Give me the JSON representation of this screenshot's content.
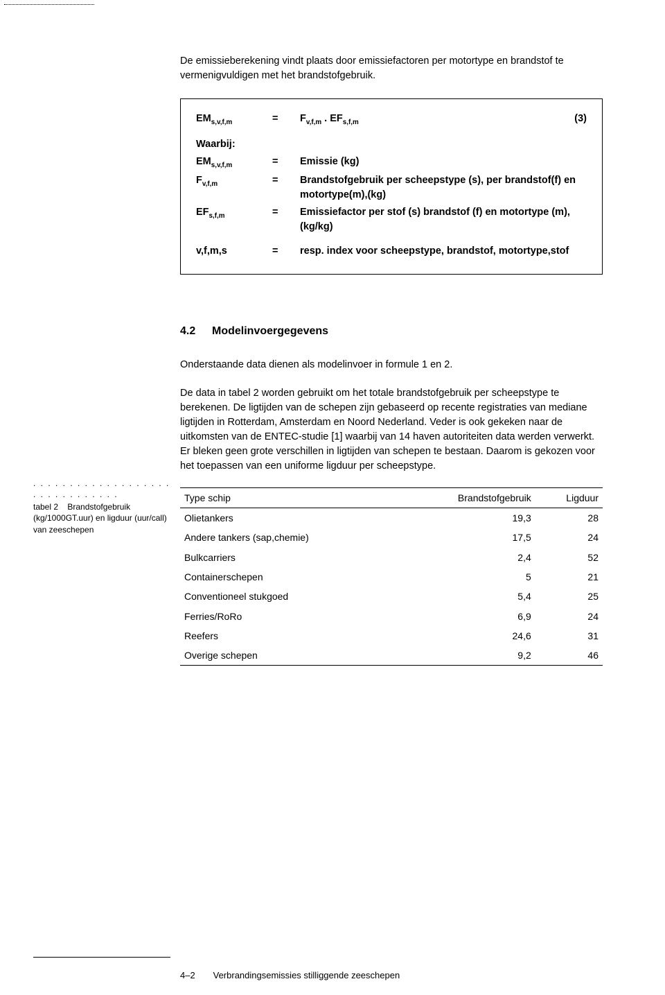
{
  "intro": "De emissieberekening vindt plaats door emissiefactoren per motortype en brandstof te vermenigvuldigen met het brandstofgebruik.",
  "formula": {
    "eq_line": {
      "lhs": "EM",
      "lhs_sub": "s,v,f,m",
      "eq": "=",
      "rhs_a": "F",
      "rhs_a_sub": "v,f,m",
      "dot": " . ",
      "rhs_b": "EF",
      "rhs_b_sub": "s,f,m",
      "tag": "(3)"
    },
    "where_label": "Waarbij:",
    "rows": [
      {
        "sym": "EM",
        "sub": "s,v,f,m",
        "eq": "=",
        "desc": "Emissie (kg)"
      },
      {
        "sym": "F",
        "sub": "v,f,m",
        "eq": "=",
        "desc": "Brandstofgebruik per scheepstype (s), per brandstof(f) en motortype(m),(kg)"
      },
      {
        "sym": "EF",
        "sub": "s,f,m",
        "eq": "=",
        "desc": "Emissiefactor per stof (s) brandstof (f) en motortype (m), (kg/kg)"
      },
      {
        "sym": "v,f,m,s",
        "sub": "",
        "eq": "=",
        "desc": "resp. index voor scheepstype, brandstof, motortype,stof"
      }
    ]
  },
  "section": {
    "number": "4.2",
    "title": "Modelinvoergegevens",
    "p1": "Onderstaande data dienen als modelinvoer in formule 1 en 2.",
    "p2": "De data in tabel 2 worden gebruikt om het totale brandstofgebruik per scheepstype te berekenen. De ligtijden van de schepen zijn gebaseerd op recente registraties van mediane ligtijden in Rotterdam, Amsterdam en Noord Nederland. Veder is ook gekeken naar de uitkomsten van de ENTEC-studie [1] waarbij van 14 haven autoriteiten data werden verwerkt. Er bleken geen grote verschillen in ligtijden van schepen te bestaan. Daarom is gekozen voor het toepassen van een uniforme ligduur per scheepstype."
  },
  "table_caption": {
    "dots": ". . . . . . . . . . . . . . . . . . . . . . . . . . . . . . .",
    "label": "tabel 2",
    "text": "Brandstofgebruik (kg/1000GT.uur) en ligduur (uur/call) van zeeschepen"
  },
  "table": {
    "columns": [
      "Type schip",
      "Brandstofgebruik",
      "Ligduur"
    ],
    "rows": [
      [
        "Olietankers",
        "19,3",
        "28"
      ],
      [
        "Andere tankers (sap,chemie)",
        "17,5",
        "24"
      ],
      [
        "Bulkcarriers",
        "2,4",
        "52"
      ],
      [
        "Containerschepen",
        "5",
        "21"
      ],
      [
        "Conventioneel stukgoed",
        "5,4",
        "25"
      ],
      [
        "Ferries/RoRo",
        "6,9",
        "24"
      ],
      [
        "Reefers",
        "24,6",
        "31"
      ],
      [
        "Overige schepen",
        "9,2",
        "46"
      ]
    ]
  },
  "footer": {
    "page": "4–2",
    "title": "Verbrandingsemissies stilliggende zeeschepen"
  }
}
